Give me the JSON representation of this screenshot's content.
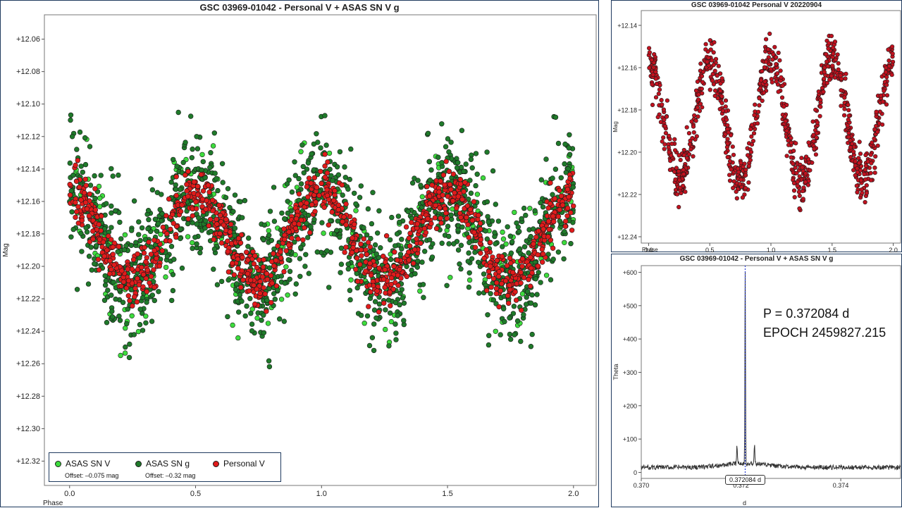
{
  "chart_data": [
    {
      "type": "scatter",
      "title": "GSC 03969-01042 - Personal V + ASAS SN V  g",
      "xlabel": "Phase",
      "ylabel": "Mag",
      "xlim": [
        -0.1,
        2.09
      ],
      "ylim": [
        12.335,
        12.045
      ],
      "y_inverted": true,
      "x_ticks": [
        "0.0",
        "0.5",
        "1.0",
        "1.5",
        "2.0"
      ],
      "y_ticks": [
        "+12.06",
        "+12.08",
        "+12.10",
        "+12.12",
        "+12.14",
        "+12.16",
        "+12.18",
        "+12.20",
        "+12.22",
        "+12.24",
        "+12.26",
        "+12.28",
        "+12.30",
        "+12.32"
      ],
      "grid": false,
      "legend_position": "bottom-left",
      "model": {
        "mean": 12.182,
        "amplitude": 0.028,
        "cycles_per_phase": 2,
        "max_brightness_phase": 0.0
      },
      "series": [
        {
          "name": "ASAS SN V",
          "offset_label": "Offset: –0.075 mag",
          "color": "#3ddc3d",
          "count": 260,
          "scatter_sd": 0.02
        },
        {
          "name": "ASAS SN g",
          "offset_label": "Offset: –0.32 mag",
          "color": "#1f7a2a",
          "count": 1500,
          "scatter_sd": 0.02
        },
        {
          "name": "Personal V",
          "offset_label": "",
          "color": "#e11b1b",
          "count": 1100,
          "scatter_sd": 0.008
        }
      ]
    },
    {
      "type": "scatter",
      "title": "GSC 03969-01042 Personal V  20220904",
      "xlabel": "Phase",
      "ylabel": "Mag",
      "xlim": [
        -0.06,
        2.06
      ],
      "ylim": [
        12.243,
        12.133
      ],
      "y_inverted": true,
      "x_ticks": [
        "0.0",
        "0.5",
        "1.0",
        "1.5",
        "2.0"
      ],
      "y_ticks": [
        "+12.14",
        "+12.16",
        "+12.18",
        "+12.20",
        "+12.22",
        "+12.24"
      ],
      "grid": false,
      "model": {
        "mean": 12.185,
        "amplitude": 0.028,
        "cycles_per_phase": 2,
        "max_brightness_phase": 0.0
      },
      "series": [
        {
          "name": "Personal V",
          "color": "#c1121f",
          "count": 950,
          "scatter_sd": 0.006
        }
      ]
    },
    {
      "type": "line",
      "title": "GSC 03969-01042 - Personal V + ASAS SN V  g",
      "xlabel": "d",
      "ylabel": "Theta",
      "xlim": [
        0.37,
        0.3752
      ],
      "ylim": [
        -18,
        620
      ],
      "x_ticks": [
        "0.370",
        "0.372",
        "0.374"
      ],
      "y_ticks": [
        "0",
        "+100",
        "+200",
        "+300",
        "+400",
        "+500",
        "+600"
      ],
      "peak": {
        "x": 0.372084,
        "y": 600,
        "label": "0.372084 d"
      },
      "side_peaks": [
        {
          "x": 0.37192,
          "y": 70
        },
        {
          "x": 0.37227,
          "y": 68
        }
      ],
      "noise_baseline": 15,
      "annotations": [
        "P = 0.372084 d",
        "EPOCH 2459827.215"
      ]
    }
  ]
}
